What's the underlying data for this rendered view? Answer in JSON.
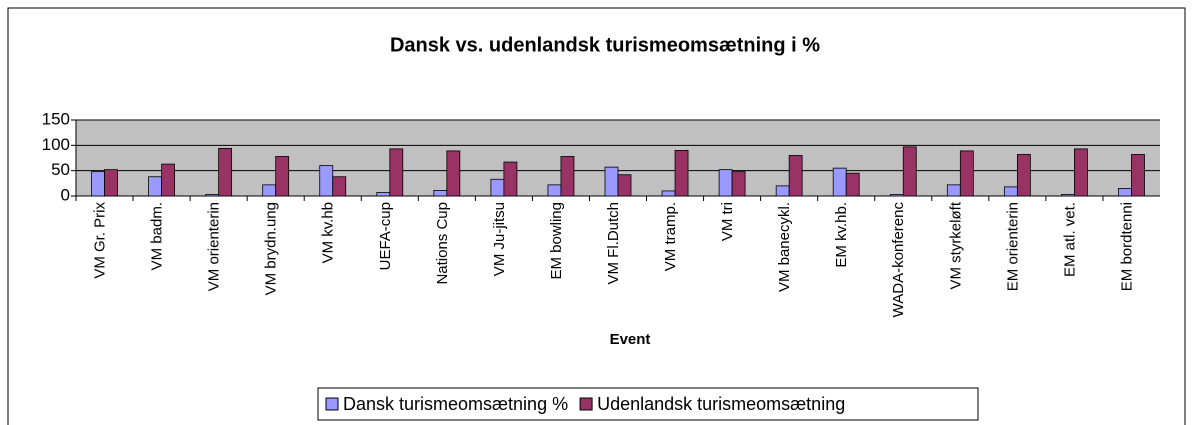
{
  "chart_data": {
    "type": "bar",
    "title": "Dansk vs. udenlandsk turismeomsætning i %",
    "x_label": "Event",
    "categories": [
      "VM Gr. Prix",
      "VM badm.",
      "VM orienterin",
      "VM brydn.ung",
      "VM kv.hb",
      "UEFA-cup",
      "Nations Cup",
      "VM Ju-jitsu",
      "EM bowling",
      "VM Fl.Dutch",
      "VM tramp.",
      "VM tri",
      "VM banecykl.",
      "EM kv.hb.",
      "WADA-konferenc",
      "VM styrkeløft",
      "EM orienterin",
      "EM atl. vet.",
      "EM bordtenni"
    ],
    "series": [
      {
        "name": "Dansk turismeomsætning %",
        "color": "#9999ff",
        "values": [
          48,
          38,
          3,
          22,
          60,
          7,
          11,
          33,
          22,
          57,
          10,
          52,
          20,
          55,
          3,
          22,
          18,
          3,
          15
        ]
      },
      {
        "name": "Udenlandsk turismeomsætning",
        "color": "#993366",
        "values": [
          52,
          63,
          94,
          78,
          38,
          93,
          89,
          67,
          78,
          42,
          90,
          48,
          80,
          45,
          97,
          89,
          82,
          93,
          82
        ]
      }
    ],
    "ylim": [
      0,
      150
    ],
    "yticks": [
      0,
      50,
      100,
      150
    ],
    "grid": true,
    "legend": "bottom"
  }
}
